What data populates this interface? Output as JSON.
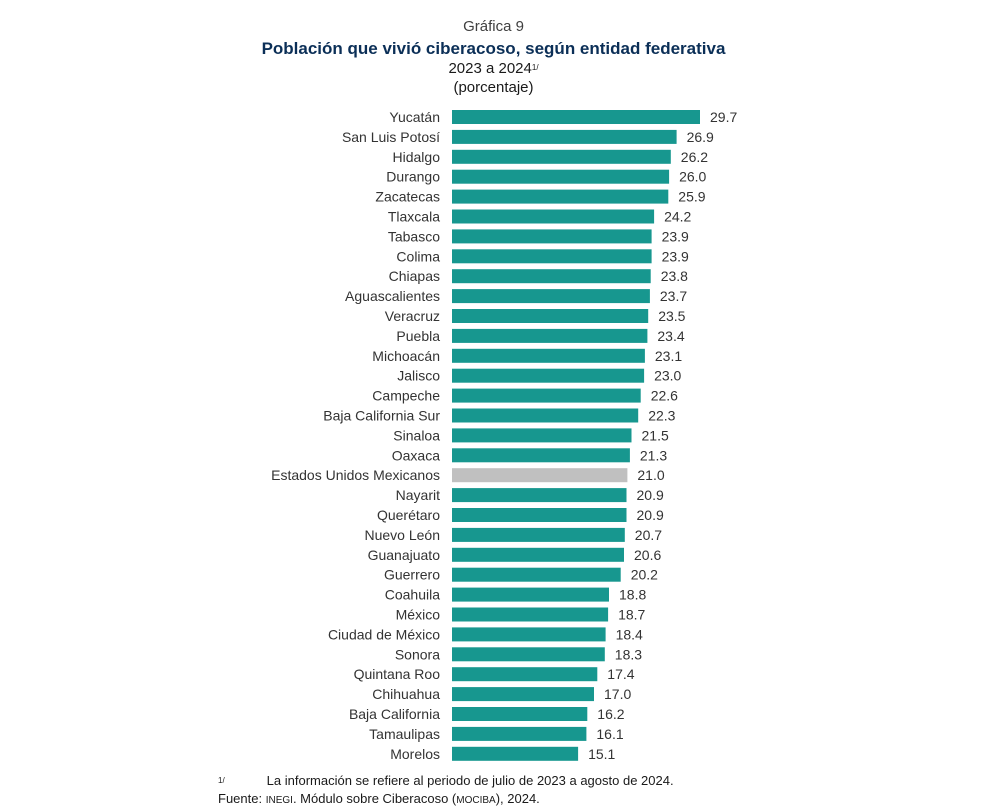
{
  "header": {
    "kicker": "Gráfica 9",
    "title": "Población que vivió ciberacoso, según entidad federativa",
    "period": "2023 a 2024",
    "period_note": "1/",
    "unit": "(porcentaje)"
  },
  "colors": {
    "bar": "#17978f",
    "bar_national": "#c0c0c0",
    "title": "#0b2f57"
  },
  "chart_data": {
    "type": "bar",
    "orientation": "horizontal",
    "title": "Población que vivió ciberacoso, según entidad federativa",
    "categories": [
      "Yucatán",
      "San Luis Potosí",
      "Hidalgo",
      "Durango",
      "Zacatecas",
      "Tlaxcala",
      "Tabasco",
      "Colima",
      "Chiapas",
      "Aguascalientes",
      "Veracruz",
      "Puebla",
      "Michoacán",
      "Jalisco",
      "Campeche",
      "Baja California Sur",
      "Sinaloa",
      "Oaxaca",
      "Estados Unidos Mexicanos",
      "Nayarit",
      "Querétaro",
      "Nuevo León",
      "Guanajuato",
      "Guerrero",
      "Coahuila",
      "México",
      "Ciudad de México",
      "Sonora",
      "Quintana Roo",
      "Chihuahua",
      "Baja California",
      "Tamaulipas",
      "Morelos"
    ],
    "values": [
      29.7,
      26.9,
      26.2,
      26.0,
      25.9,
      24.2,
      23.9,
      23.9,
      23.8,
      23.7,
      23.5,
      23.4,
      23.1,
      23.0,
      22.6,
      22.3,
      21.5,
      21.3,
      21.0,
      20.9,
      20.9,
      20.7,
      20.6,
      20.2,
      18.8,
      18.7,
      18.4,
      18.3,
      17.4,
      17.0,
      16.2,
      16.1,
      15.1
    ],
    "value_labels": [
      "29.7",
      "26.9",
      "26.2",
      "26.0",
      "25.9",
      "24.2",
      "23.9",
      "23.9",
      "23.8",
      "23.7",
      "23.5",
      "23.4",
      "23.1",
      "23.0",
      "22.6",
      "22.3",
      "21.5",
      "21.3",
      "21.0",
      "20.9",
      "20.9",
      "20.7",
      "20.6",
      "20.2",
      "18.8",
      "18.7",
      "18.4",
      "18.3",
      "17.4",
      "17.0",
      "16.2",
      "16.1",
      "15.1"
    ],
    "highlight": "Estados Unidos Mexicanos",
    "xlim": [
      0,
      29.7
    ],
    "grid": false,
    "legend": "none"
  },
  "footnote": {
    "mark": "1/",
    "text": "La información se refiere al periodo de julio de 2023 a agosto de 2024."
  },
  "source": {
    "prefix": "Fuente: ",
    "org": "INEGI",
    "text_mid": ". Módulo sobre Ciberacoso (",
    "acronym": "MOCIBA",
    "text_end": "), 2024."
  }
}
